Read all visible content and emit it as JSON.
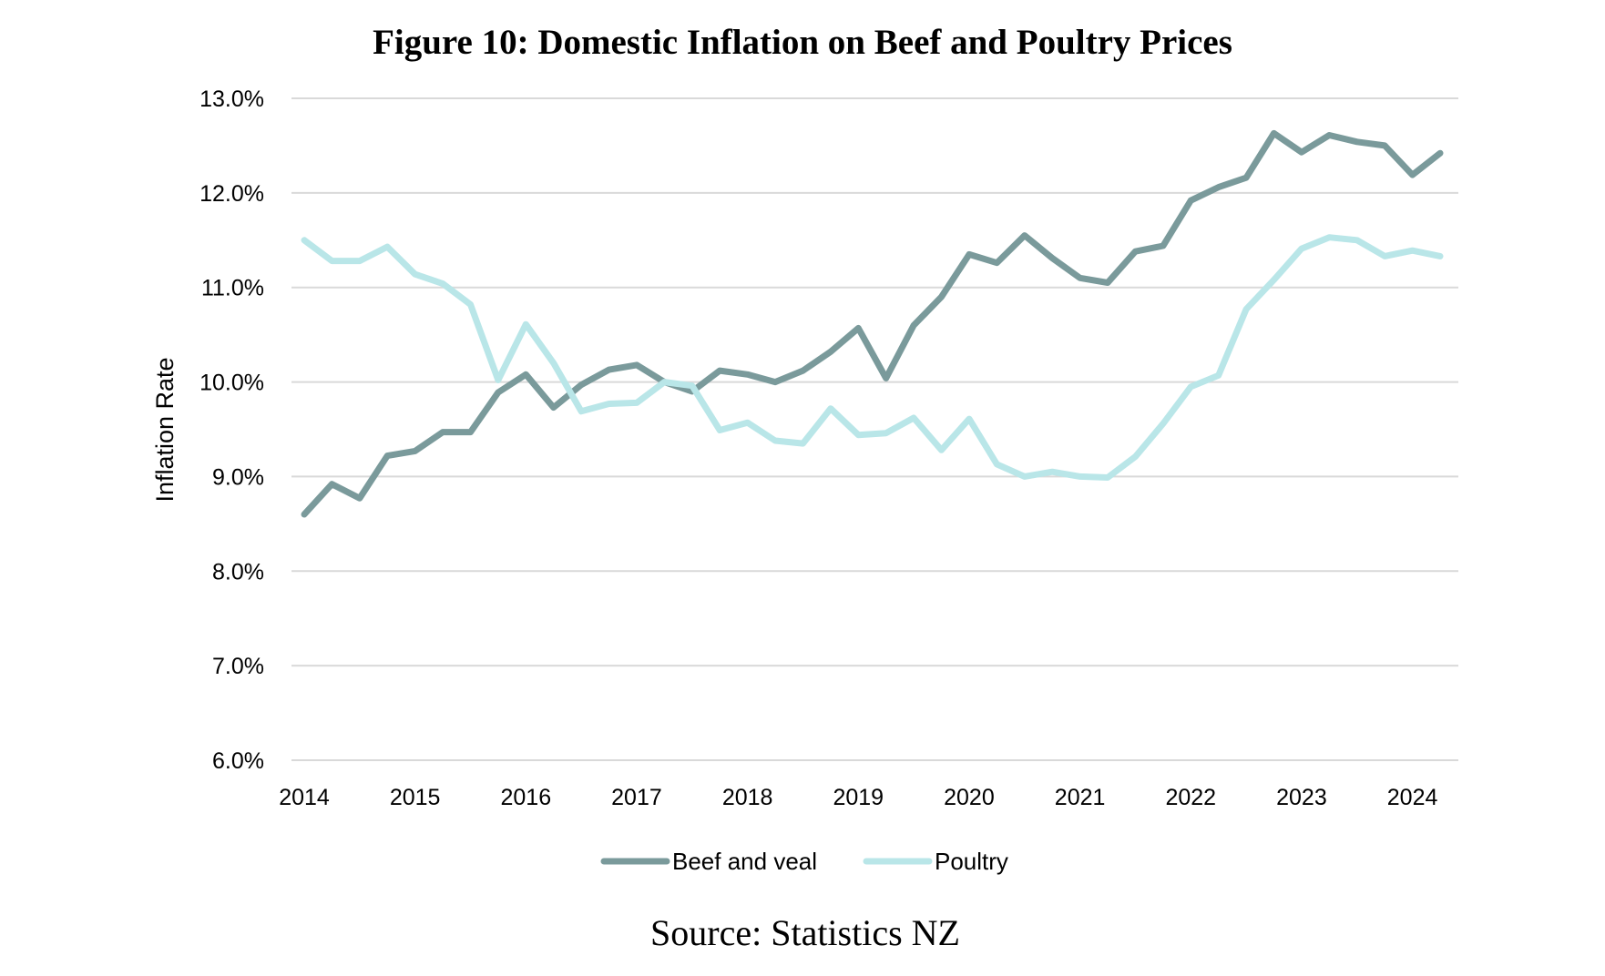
{
  "chart_data": {
    "type": "line",
    "title": "Figure 10: Domestic Inflation on Beef and Poultry Prices",
    "source": "Source: Statistics NZ",
    "xlabel": "",
    "ylabel": "Inflation Rate",
    "ylim": [
      6.0,
      13.0
    ],
    "xlim": [
      2014.0,
      2024.25
    ],
    "yticks": [
      "6.0%",
      "7.0%",
      "8.0%",
      "9.0%",
      "10.0%",
      "11.0%",
      "12.0%",
      "13.0%"
    ],
    "ytick_values": [
      6.0,
      7.0,
      8.0,
      9.0,
      10.0,
      11.0,
      12.0,
      13.0
    ],
    "xticks": [
      "2014",
      "2015",
      "2016",
      "2017",
      "2018",
      "2019",
      "2020",
      "2021",
      "2022",
      "2023",
      "2024"
    ],
    "xtick_values": [
      2014,
      2015,
      2016,
      2017,
      2018,
      2019,
      2020,
      2021,
      2022,
      2023,
      2024
    ],
    "grid": true,
    "legend_position": "bottom-center",
    "x": [
      2014.0,
      2014.25,
      2014.5,
      2014.75,
      2015.0,
      2015.25,
      2015.5,
      2015.75,
      2016.0,
      2016.25,
      2016.5,
      2016.75,
      2017.0,
      2017.25,
      2017.5,
      2017.75,
      2018.0,
      2018.25,
      2018.5,
      2018.75,
      2019.0,
      2019.25,
      2019.5,
      2019.75,
      2020.0,
      2020.25,
      2020.5,
      2020.75,
      2021.0,
      2021.25,
      2021.5,
      2021.75,
      2022.0,
      2022.25,
      2022.5,
      2022.75,
      2023.0,
      2023.25,
      2023.5,
      2023.75,
      2024.0,
      2024.25
    ],
    "series": [
      {
        "name": "Beef and veal",
        "color": "#7a9a9b",
        "values": [
          8.6,
          8.92,
          8.77,
          9.22,
          9.27,
          9.47,
          9.47,
          9.89,
          10.08,
          9.73,
          9.97,
          10.13,
          10.18,
          10.0,
          9.9,
          10.12,
          10.08,
          10.0,
          10.12,
          10.32,
          10.57,
          10.04,
          10.6,
          10.9,
          11.35,
          11.26,
          11.55,
          11.31,
          11.1,
          11.05,
          11.38,
          11.44,
          11.92,
          12.06,
          12.16,
          12.63,
          12.43,
          12.61,
          12.54,
          12.5,
          12.19,
          12.42
        ]
      },
      {
        "name": "Poultry",
        "color": "#b9e6e8",
        "values": [
          11.5,
          11.28,
          11.28,
          11.43,
          11.14,
          11.04,
          10.82,
          10.02,
          10.61,
          10.2,
          9.69,
          9.77,
          9.78,
          10.0,
          9.96,
          9.49,
          9.57,
          9.38,
          9.35,
          9.72,
          9.44,
          9.46,
          9.62,
          9.28,
          9.61,
          9.13,
          9.0,
          9.05,
          9.0,
          8.99,
          9.21,
          9.56,
          9.95,
          10.07,
          10.77,
          11.08,
          11.41,
          11.53,
          11.5,
          11.33,
          11.39,
          11.33
        ]
      }
    ]
  }
}
